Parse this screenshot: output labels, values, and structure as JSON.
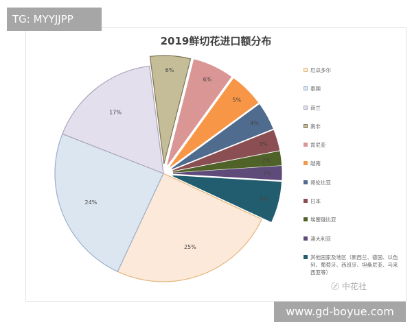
{
  "overlay": {
    "tag": "TG: MYYJJPP",
    "url": "www.gd-boyue.com"
  },
  "watermark": {
    "icon": "wechat-icon",
    "text": "中花社"
  },
  "chart_data": {
    "type": "pie",
    "title": "2019鲜切花进口额分布",
    "legend_position": "right",
    "unit": "%",
    "slices": [
      {
        "label": "厄瓜多尔",
        "value": 25,
        "data_label": "25%",
        "color": "#fde9d9",
        "stroke": "#e3b77c",
        "exploded": false
      },
      {
        "label": "泰国",
        "value": 24,
        "data_label": "24%",
        "color": "#dce6f1",
        "stroke": "#9aaecb",
        "exploded": false
      },
      {
        "label": "荷兰",
        "value": 17,
        "data_label": "17%",
        "color": "#e4dfec",
        "stroke": "#aaa3bb",
        "exploded": false
      },
      {
        "label": "南非",
        "value": 6,
        "data_label": "6%",
        "color": "#c4bd97",
        "stroke": "#7b7555",
        "exploded": true
      },
      {
        "label": "肯尼亚",
        "value": 6,
        "data_label": "6%",
        "color": "#da9694",
        "stroke": "#da9694",
        "exploded": true
      },
      {
        "label": "越南",
        "value": 5,
        "data_label": "5%",
        "color": "#f79646",
        "stroke": "#f79646",
        "exploded": true
      },
      {
        "label": "哥伦比亚",
        "value": 4,
        "data_label": "4%",
        "color": "#4f6b8e",
        "stroke": "#4f6b8e",
        "exploded": true
      },
      {
        "label": "日本",
        "value": 3,
        "data_label": "3%",
        "color": "#8b4e52",
        "stroke": "#8b4e52",
        "exploded": true
      },
      {
        "label": "埃塞俄比亚",
        "value": 2,
        "data_label": "2%",
        "color": "#4f6228",
        "stroke": "#4f6228",
        "exploded": true
      },
      {
        "label": "澳大利亚",
        "value": 2,
        "data_label": "2%",
        "color": "#5f4b7a",
        "stroke": "#5f4b7a",
        "exploded": true
      },
      {
        "label": "其他国家及地区（新西兰、德国、以色列、葡萄牙、西班牙、坦桑尼亚、马来西亚等）",
        "value": 6,
        "data_label": "6%",
        "color": "#215d6e",
        "stroke": "#215d6e",
        "exploded": true
      }
    ]
  }
}
